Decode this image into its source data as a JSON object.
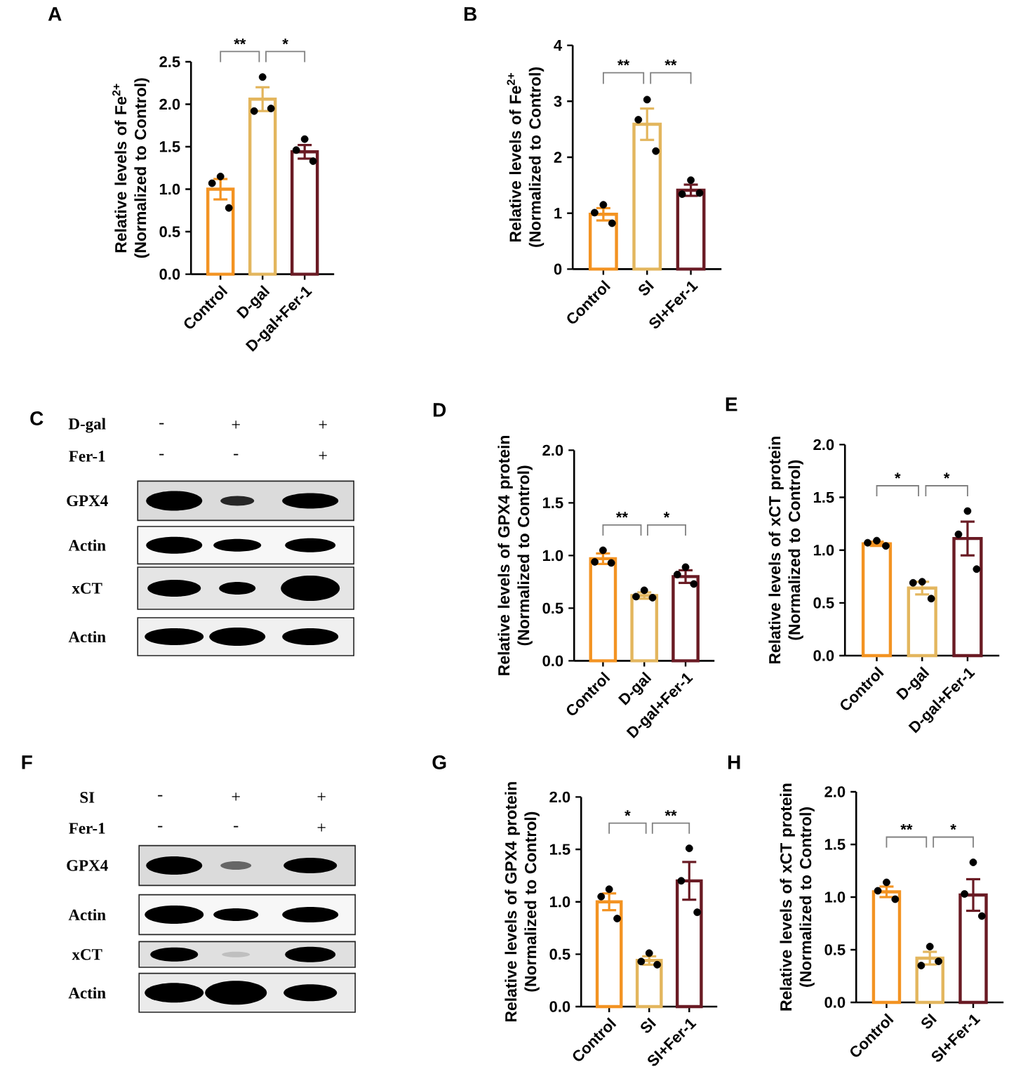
{
  "chart_data": [
    {
      "type": "bar",
      "title": "A",
      "ylabel": "Relative levels of Fe$^{2+}$ (Normalized to Control)",
      "categories": [
        "Control",
        "D-gal",
        "D-gal+Fer-1"
      ],
      "series": [
        {
          "type": "bar",
          "colors": [
            "#f39322",
            "#e3b65e",
            "#6a1b24"
          ],
          "values": [
            1.0,
            2.06,
            1.44
          ],
          "errors": [
            0.12,
            0.14,
            0.08
          ]
        },
        {
          "type": "scatter",
          "color": "#000000",
          "marker": "circle",
          "x": [
            "Control",
            "Control",
            "Control",
            "D-gal",
            "D-gal",
            "D-gal",
            "D-gal+Fer-1",
            "D-gal+Fer-1",
            "D-gal+Fer-1"
          ],
          "values": [
            1.15,
            1.07,
            0.78,
            2.32,
            1.92,
            1.95,
            1.59,
            1.46,
            1.33
          ]
        }
      ],
      "ylim": [
        0,
        2.5
      ],
      "yticks": [
        {
          "value": 0,
          "label": "0.0"
        },
        0.5,
        {
          "value": 1,
          "label": "1.0"
        },
        1.5,
        {
          "value": 2,
          "label": "2.0"
        },
        2.5
      ],
      "annotations": [
        "**",
        "*"
      ]
    },
    {
      "type": "bar",
      "title": "B",
      "ylabel": "Relative levels of Fe$^{2+}$ (Normalized to Control)",
      "categories": [
        "Control",
        "SI",
        "SI+Fer-1"
      ],
      "series": [
        {
          "type": "bar",
          "colors": [
            "#f39322",
            "#e3b65e",
            "#6a1b24"
          ],
          "values": [
            0.98,
            2.59,
            1.41
          ],
          "errors": [
            0.11,
            0.28,
            0.1
          ]
        },
        {
          "type": "scatter",
          "color": "#000000",
          "marker": "circle",
          "x": [
            "Control",
            "Control",
            "Control",
            "SI",
            "SI",
            "SI",
            "SI+Fer-1",
            "SI+Fer-1",
            "SI+Fer-1"
          ],
          "values": [
            1.15,
            1.01,
            0.82,
            3.03,
            2.67,
            2.11,
            1.59,
            1.34,
            1.36
          ]
        }
      ],
      "ylim": [
        0,
        4
      ],
      "yticks": [
        0,
        1,
        2,
        3,
        4
      ],
      "annotations": [
        "**",
        "**"
      ]
    },
    {
      "type": "other",
      "title": "C",
      "annotations": [
        "D-gal",
        "-",
        "+",
        "+",
        "Fer-1",
        "-",
        "-",
        "+",
        "GPX4",
        "Actin",
        "xCT",
        "Actin"
      ]
    },
    {
      "type": "bar",
      "title": "D",
      "ylabel": "Relative levels of GPX4 protein (Normalized to Control)",
      "categories": [
        "Control",
        "D-gal",
        "D-gal+Fer-1"
      ],
      "series": [
        {
          "type": "bar",
          "colors": [
            "#f39322",
            "#e3b65e",
            "#6a1b24"
          ],
          "values": [
            0.97,
            0.62,
            0.8
          ],
          "errors": [
            0.05,
            0.03,
            0.06
          ]
        },
        {
          "type": "scatter",
          "color": "#000000",
          "marker": "circle",
          "x": [
            "Control",
            "Control",
            "Control",
            "D-gal",
            "D-gal",
            "D-gal",
            "D-gal+Fer-1",
            "D-gal+Fer-1",
            "D-gal+Fer-1"
          ],
          "values": [
            1.05,
            0.94,
            0.93,
            0.67,
            0.61,
            0.6,
            0.89,
            0.82,
            0.73
          ]
        }
      ],
      "ylim": [
        0,
        2
      ],
      "yticks": [
        {
          "value": 0,
          "label": "0.0"
        },
        0.5,
        {
          "value": 1,
          "label": "1.0"
        },
        1.5,
        {
          "value": 2,
          "label": "2.0"
        }
      ],
      "annotations": [
        "**",
        "*"
      ]
    },
    {
      "type": "bar",
      "title": "E",
      "ylabel": "Relative levels of xCT protein (Normalized to Control)",
      "categories": [
        "Control",
        "D-gal",
        "D-gal+Fer-1"
      ],
      "series": [
        {
          "type": "bar",
          "colors": [
            "#f39322",
            "#e3b65e",
            "#6a1b24"
          ],
          "values": [
            1.06,
            0.64,
            1.11
          ],
          "errors": [
            0.02,
            0.06,
            0.16
          ]
        },
        {
          "type": "scatter",
          "color": "#000000",
          "marker": "circle",
          "x": [
            "Control",
            "Control",
            "Control",
            "D-gal",
            "D-gal",
            "D-gal",
            "D-gal+Fer-1",
            "D-gal+Fer-1",
            "D-gal+Fer-1"
          ],
          "values": [
            1.09,
            1.07,
            1.04,
            0.7,
            0.69,
            0.54,
            1.37,
            1.15,
            0.82
          ]
        }
      ],
      "ylim": [
        0,
        2
      ],
      "yticks": [
        {
          "value": 0,
          "label": "0.0"
        },
        0.5,
        {
          "value": 1,
          "label": "1.0"
        },
        1.5,
        {
          "value": 2,
          "label": "2.0"
        }
      ],
      "annotations": [
        "*",
        "*"
      ]
    },
    {
      "type": "other",
      "title": "F",
      "annotations": [
        "SI",
        "-",
        "+",
        "+",
        "Fer-1",
        "-",
        "-",
        "+",
        "GPX4",
        "Actin",
        "xCT",
        "Actin"
      ]
    },
    {
      "type": "bar",
      "title": "G",
      "ylabel": "Relative levels of GPX4 protein (Normalized to Control)",
      "categories": [
        "Control",
        "SI",
        "SI+Fer-1"
      ],
      "series": [
        {
          "type": "bar",
          "colors": [
            "#f39322",
            "#e3b65e",
            "#6a1b24"
          ],
          "values": [
            1.0,
            0.44,
            1.2
          ],
          "errors": [
            0.08,
            0.04,
            0.18
          ]
        },
        {
          "type": "scatter",
          "color": "#000000",
          "marker": "circle",
          "x": [
            "Control",
            "Control",
            "Control",
            "SI",
            "SI",
            "SI",
            "SI+Fer-1",
            "SI+Fer-1",
            "SI+Fer-1"
          ],
          "values": [
            1.12,
            1.05,
            0.84,
            0.51,
            0.43,
            0.4,
            1.51,
            1.2,
            0.9
          ]
        }
      ],
      "ylim": [
        0,
        2
      ],
      "yticks": [
        {
          "value": 0,
          "label": "0.0"
        },
        0.5,
        {
          "value": 1,
          "label": "1.0"
        },
        1.5,
        {
          "value": 2,
          "label": "2.0"
        }
      ],
      "annotations": [
        "*",
        "**"
      ]
    },
    {
      "type": "bar",
      "title": "H",
      "ylabel": "Relative levels of xCT protein (Normalized to Control)",
      "categories": [
        "Control",
        "SI",
        "SI+Fer-1"
      ],
      "series": [
        {
          "type": "bar",
          "colors": [
            "#f39322",
            "#e3b65e",
            "#6a1b24"
          ],
          "values": [
            1.05,
            0.42,
            1.02
          ],
          "errors": [
            0.05,
            0.06,
            0.15
          ]
        },
        {
          "type": "scatter",
          "color": "#000000",
          "marker": "circle",
          "x": [
            "Control",
            "Control",
            "Control",
            "SI",
            "SI",
            "SI",
            "SI+Fer-1",
            "SI+Fer-1",
            "SI+Fer-1"
          ],
          "values": [
            1.14,
            1.06,
            0.98,
            0.53,
            0.35,
            0.39,
            1.33,
            1.03,
            0.82
          ]
        }
      ],
      "ylim": [
        0,
        2
      ],
      "yticks": [
        {
          "value": 0,
          "label": "0.0"
        },
        0.5,
        {
          "value": 1,
          "label": "1.0"
        },
        1.5,
        {
          "value": 2,
          "label": "2.0"
        }
      ],
      "annotations": [
        "**",
        "*"
      ]
    }
  ]
}
